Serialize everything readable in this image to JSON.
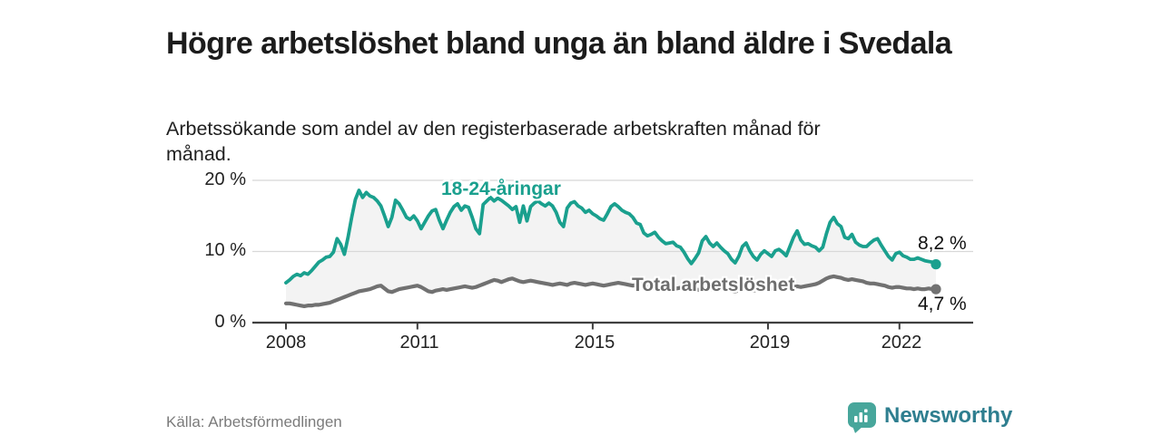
{
  "header": {
    "title": "Högre arbetslöshet bland unga än bland äldre i Svedala",
    "subtitle": "Arbetssökande som andel av den registerbaserade arbetskraften månad för månad."
  },
  "footer": {
    "source": "Källa: Arbetsförmedlingen",
    "brand": "Newsworthy"
  },
  "colors": {
    "young_line": "#1aa08e",
    "total_line": "#717171",
    "area_fill": "#f3f3f3",
    "gridline": "#d8d8d8",
    "axis": "#3f3f3f",
    "brand_icon": "#47a69b",
    "brand_text": "#2e7e8f"
  },
  "chart_data": {
    "type": "line",
    "title": "Högre arbetslöshet bland unga än bland äldre i Svedala",
    "subtitle": "Arbetssökande som andel av den registerbaserade arbetskraften månad för månad.",
    "unit": "%",
    "x_start": "2008-01",
    "x_end": "2022-11",
    "x_ticks": [
      "2008",
      "2011",
      "2015",
      "2019",
      "2022"
    ],
    "y_ticks": [
      "0 %",
      "10 %",
      "20 %"
    ],
    "ylim": [
      0,
      21
    ],
    "grid": "horizontal-only",
    "legend_position": "inline-labels",
    "area_between_series_filled": true,
    "series": [
      {
        "name": "18-24-åringar",
        "color": "#1aa08e",
        "end_label": "8,2 %",
        "end_value": 8.2,
        "values": [
          5.6,
          6.0,
          6.5,
          6.8,
          6.6,
          7.0,
          6.8,
          7.3,
          7.9,
          8.5,
          8.8,
          9.2,
          9.3,
          9.9,
          11.8,
          11.0,
          9.6,
          12.0,
          14.8,
          17.3,
          18.6,
          17.6,
          18.3,
          17.8,
          17.6,
          17.1,
          16.4,
          15.0,
          13.5,
          14.8,
          17.2,
          16.7,
          15.8,
          14.8,
          14.5,
          15.0,
          14.3,
          13.2,
          14.1,
          15.0,
          15.7,
          15.9,
          14.4,
          13.2,
          14.4,
          15.5,
          16.3,
          16.7,
          15.8,
          16.4,
          16.2,
          14.8,
          13.2,
          12.5,
          16.6,
          17.1,
          17.6,
          17.1,
          17.5,
          17.2,
          16.8,
          16.4,
          15.9,
          16.3,
          14.1,
          16.4,
          14.3,
          16.3,
          16.8,
          17.1,
          16.7,
          16.4,
          16.8,
          16.4,
          15.5,
          14.1,
          13.5,
          16.1,
          16.8,
          17.0,
          16.4,
          16.1,
          15.5,
          15.8,
          15.3,
          15.0,
          14.6,
          14.4,
          15.3,
          16.3,
          16.7,
          16.3,
          15.8,
          15.5,
          15.3,
          14.8,
          14.0,
          13.8,
          12.6,
          12.2,
          12.4,
          12.7,
          12.0,
          11.5,
          11.1,
          11.2,
          11.3,
          10.8,
          10.6,
          9.9,
          9.0,
          8.3,
          9.0,
          9.8,
          11.5,
          12.1,
          11.2,
          10.7,
          11.2,
          10.6,
          10.1,
          9.7,
          8.9,
          8.4,
          9.3,
          10.7,
          11.2,
          10.1,
          9.3,
          8.8,
          9.6,
          10.1,
          9.7,
          9.3,
          10.1,
          10.3,
          9.9,
          9.4,
          10.7,
          12.0,
          12.9,
          11.6,
          11.0,
          11.1,
          10.8,
          10.6,
          10.1,
          10.6,
          12.5,
          14.1,
          14.8,
          13.9,
          13.5,
          12.0,
          11.8,
          12.4,
          11.3,
          10.9,
          10.7,
          10.7,
          11.2,
          11.6,
          11.8,
          10.9,
          10.1,
          9.3,
          8.8,
          9.7,
          9.9,
          9.4,
          9.2,
          8.9,
          8.9,
          9.1,
          8.9,
          8.7,
          8.6,
          8.5,
          8.2
        ]
      },
      {
        "name": "Total arbetslöshet",
        "color": "#717171",
        "end_label": "4,7 %",
        "end_value": 4.7,
        "values": [
          2.7,
          2.7,
          2.6,
          2.5,
          2.4,
          2.3,
          2.4,
          2.4,
          2.5,
          2.5,
          2.6,
          2.7,
          2.8,
          3.0,
          3.2,
          3.4,
          3.6,
          3.8,
          4.0,
          4.2,
          4.4,
          4.5,
          4.6,
          4.7,
          4.9,
          5.1,
          5.2,
          4.8,
          4.4,
          4.3,
          4.5,
          4.7,
          4.8,
          4.9,
          5.0,
          5.1,
          5.2,
          5.0,
          4.7,
          4.4,
          4.3,
          4.5,
          4.6,
          4.7,
          4.6,
          4.7,
          4.8,
          4.9,
          5.0,
          5.1,
          5.0,
          4.9,
          5.0,
          5.2,
          5.4,
          5.6,
          5.8,
          6.0,
          5.9,
          5.7,
          5.9,
          6.1,
          6.2,
          6.0,
          5.8,
          5.7,
          5.8,
          5.9,
          5.8,
          5.7,
          5.6,
          5.5,
          5.4,
          5.3,
          5.4,
          5.5,
          5.4,
          5.3,
          5.5,
          5.6,
          5.5,
          5.4,
          5.3,
          5.4,
          5.5,
          5.4,
          5.3,
          5.2,
          5.3,
          5.4,
          5.5,
          5.6,
          5.5,
          5.4,
          5.3,
          5.2,
          5.3,
          5.4,
          5.3,
          5.2,
          5.1,
          5.0,
          5.1,
          5.2,
          5.1,
          5.0,
          4.9,
          4.8,
          4.9,
          5.0,
          4.9,
          4.8,
          4.7,
          4.6,
          4.7,
          4.8,
          4.7,
          4.6,
          4.5,
          4.6,
          4.7,
          4.6,
          4.5,
          4.4,
          4.5,
          4.6,
          4.7,
          4.6,
          4.5,
          4.6,
          4.7,
          4.8,
          4.9,
          4.8,
          4.9,
          5.0,
          4.9,
          5.0,
          5.1,
          5.0,
          5.1,
          5.0,
          5.1,
          5.2,
          5.3,
          5.4,
          5.6,
          5.9,
          6.2,
          6.4,
          6.5,
          6.4,
          6.3,
          6.1,
          6.0,
          6.1,
          6.0,
          5.9,
          5.8,
          5.6,
          5.5,
          5.5,
          5.4,
          5.3,
          5.2,
          5.0,
          4.9,
          5.0,
          5.0,
          4.9,
          4.8,
          4.8,
          4.7,
          4.8,
          4.7,
          4.7,
          4.8,
          4.7,
          4.7
        ]
      }
    ]
  }
}
